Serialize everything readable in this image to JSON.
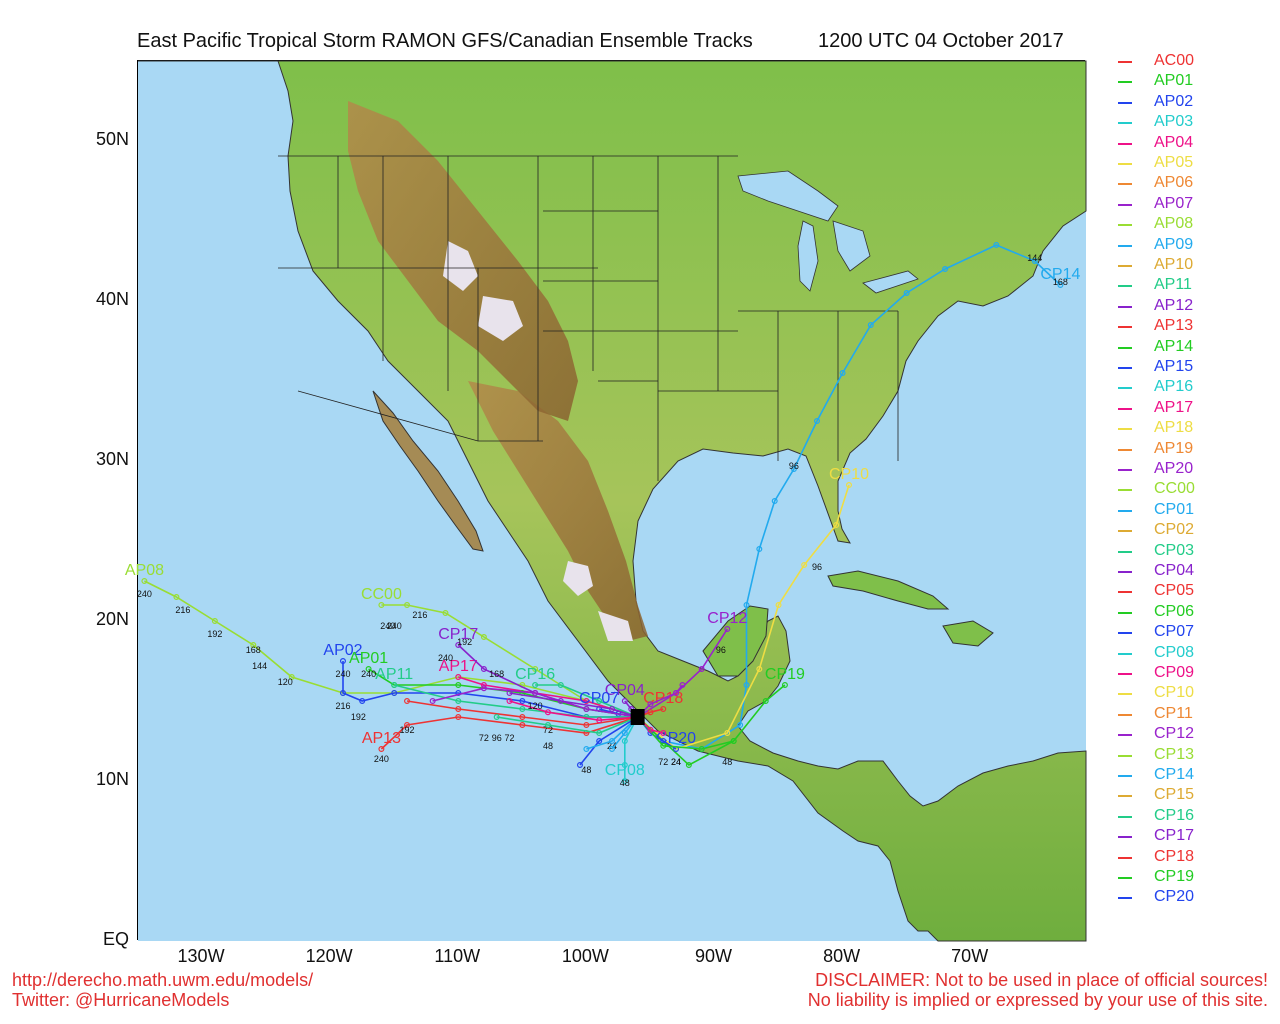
{
  "title": {
    "main": "East Pacific Tropical Storm RAMON GFS/Canadian Ensemble Tracks",
    "time": "1200 UTC 04 October 2017"
  },
  "axes": {
    "lat_labels": [
      "50N",
      "40N",
      "30N",
      "20N",
      "10N",
      "EQ"
    ],
    "lon_labels": [
      "130W",
      "120W",
      "110W",
      "100W",
      "90W",
      "80W",
      "70W"
    ]
  },
  "legend": [
    {
      "name": "AC00",
      "color": "#ee3333"
    },
    {
      "name": "AP01",
      "color": "#22cc22"
    },
    {
      "name": "AP02",
      "color": "#2244ee"
    },
    {
      "name": "AP03",
      "color": "#22cccc"
    },
    {
      "name": "AP04",
      "color": "#ee1188"
    },
    {
      "name": "AP05",
      "color": "#eedd44"
    },
    {
      "name": "AP06",
      "color": "#ee8833"
    },
    {
      "name": "AP07",
      "color": "#9922cc"
    },
    {
      "name": "AP08",
      "color": "#99dd33"
    },
    {
      "name": "AP09",
      "color": "#22aaee"
    },
    {
      "name": "AP10",
      "color": "#ddaa33"
    },
    {
      "name": "AP11",
      "color": "#22cc88"
    },
    {
      "name": "AP12",
      "color": "#8822cc"
    },
    {
      "name": "AP13",
      "color": "#ee3333"
    },
    {
      "name": "AP14",
      "color": "#22cc22"
    },
    {
      "name": "AP15",
      "color": "#2244ee"
    },
    {
      "name": "AP16",
      "color": "#22cccc"
    },
    {
      "name": "AP17",
      "color": "#ee1188"
    },
    {
      "name": "AP18",
      "color": "#eedd44"
    },
    {
      "name": "AP19",
      "color": "#ee8833"
    },
    {
      "name": "AP20",
      "color": "#9922cc"
    },
    {
      "name": "CC00",
      "color": "#99dd33"
    },
    {
      "name": "CP01",
      "color": "#22aaee"
    },
    {
      "name": "CP02",
      "color": "#ddaa33"
    },
    {
      "name": "CP03",
      "color": "#22cc88"
    },
    {
      "name": "CP04",
      "color": "#8822cc"
    },
    {
      "name": "CP05",
      "color": "#ee3333"
    },
    {
      "name": "CP06",
      "color": "#22cc22"
    },
    {
      "name": "CP07",
      "color": "#2244ee"
    },
    {
      "name": "CP08",
      "color": "#22cccc"
    },
    {
      "name": "CP09",
      "color": "#ee1188"
    },
    {
      "name": "CP10",
      "color": "#eedd44"
    },
    {
      "name": "CP11",
      "color": "#ee8833"
    },
    {
      "name": "CP12",
      "color": "#9922cc"
    },
    {
      "name": "CP13",
      "color": "#99dd33"
    },
    {
      "name": "CP14",
      "color": "#22aaee"
    },
    {
      "name": "CP15",
      "color": "#ddaa33"
    },
    {
      "name": "CP16",
      "color": "#22cc88"
    },
    {
      "name": "CP17",
      "color": "#8822cc"
    },
    {
      "name": "CP18",
      "color": "#ee3333"
    },
    {
      "name": "CP19",
      "color": "#22cc22"
    },
    {
      "name": "CP20",
      "color": "#2244ee"
    }
  ],
  "tracks": [
    {
      "name": "CP14",
      "color": "#22aaee",
      "label": "CP14",
      "points": [
        [
          -96,
          14
        ],
        [
          -94,
          12.5
        ],
        [
          -91,
          12
        ],
        [
          -88,
          13.5
        ],
        [
          -87.5,
          16
        ],
        [
          -87.5,
          21
        ],
        [
          -86.5,
          24.5
        ],
        [
          -85.3,
          27.5
        ],
        [
          -83.8,
          29.5
        ],
        [
          -82,
          32.5
        ],
        [
          -80,
          35.5
        ],
        [
          -77.8,
          38.5
        ],
        [
          -75,
          40.5
        ],
        [
          -72,
          42
        ],
        [
          -68,
          43.5
        ],
        [
          -65,
          42.5
        ],
        [
          -63,
          41
        ]
      ],
      "hours": [
        {
          "t": "96",
          "at": [
            -83.8,
            29.5
          ]
        },
        {
          "t": "144",
          "at": [
            -65,
            42.5
          ]
        },
        {
          "t": "168",
          "at": [
            -63,
            41
          ]
        }
      ]
    },
    {
      "name": "CP10",
      "color": "#eedd44",
      "label": "CP10",
      "points": [
        [
          -96,
          14
        ],
        [
          -93,
          12
        ],
        [
          -89,
          13
        ],
        [
          -86.5,
          17
        ],
        [
          -85,
          21
        ],
        [
          -83,
          23.5
        ],
        [
          -80.5,
          26
        ],
        [
          -79.5,
          28.5
        ]
      ],
      "hours": [
        {
          "t": "96",
          "at": [
            -82,
            23.2
          ]
        }
      ]
    },
    {
      "name": "CP12",
      "color": "#9922cc",
      "label": "CP12",
      "points": [
        [
          -96,
          14
        ],
        [
          -93,
          15.5
        ],
        [
          -91,
          17
        ],
        [
          -89,
          19.5
        ]
      ],
      "hours": [
        {
          "t": "96",
          "at": [
            -89.5,
            18
          ]
        }
      ]
    },
    {
      "name": "CP19",
      "color": "#22cc22",
      "label": "CP19",
      "points": [
        [
          -96,
          14
        ],
        [
          -92,
          11
        ],
        [
          -88.5,
          12.5
        ],
        [
          -86,
          15
        ],
        [
          -84.5,
          16
        ]
      ],
      "hours": [
        {
          "t": "48",
          "at": [
            -89,
            11
          ]
        }
      ]
    },
    {
      "name": "AP08",
      "color": "#99dd33",
      "label": "AP08",
      "points": [
        [
          -96,
          14
        ],
        [
          -100,
          15
        ],
        [
          -105,
          16
        ],
        [
          -110,
          16.5
        ],
        [
          -115,
          15.5
        ],
        [
          -119,
          15.5
        ],
        [
          -123,
          16.5
        ],
        [
          -126,
          18.5
        ],
        [
          -129,
          20
        ],
        [
          -132,
          21.5
        ],
        [
          -134.5,
          22.5
        ]
      ],
      "hours": [
        {
          "t": "120",
          "at": [
            -123.5,
            16
          ]
        },
        {
          "t": "144",
          "at": [
            -125.5,
            17
          ]
        },
        {
          "t": "168",
          "at": [
            -126,
            18
          ]
        },
        {
          "t": "192",
          "at": [
            -129,
            19
          ]
        },
        {
          "t": "216",
          "at": [
            -131.5,
            20.5
          ]
        },
        {
          "t": "240",
          "at": [
            -134.5,
            21.5
          ]
        }
      ]
    },
    {
      "name": "CC00",
      "color": "#99dd33",
      "label": "CC00",
      "points": [
        [
          -96,
          14
        ],
        [
          -100,
          15
        ],
        [
          -104,
          17
        ],
        [
          -108,
          19
        ],
        [
          -111,
          20.5
        ],
        [
          -114,
          21
        ],
        [
          -116,
          21
        ]
      ],
      "hours": [
        {
          "t": "216",
          "at": [
            -113,
            20.2
          ]
        },
        {
          "t": "240",
          "at": [
            -115.5,
            19.5
          ]
        }
      ]
    },
    {
      "name": "AP17",
      "color": "#ee1188",
      "label": "AP17",
      "points": [
        [
          -96,
          14
        ],
        [
          -100,
          15
        ],
        [
          -104,
          15.5
        ],
        [
          -108,
          16
        ],
        [
          -110,
          16.5
        ]
      ],
      "hours": []
    },
    {
      "name": "CP17",
      "color": "#8822cc",
      "label": "CP17",
      "points": [
        [
          -96,
          14
        ],
        [
          -100,
          14.5
        ],
        [
          -104,
          15.5
        ],
        [
          -108,
          17
        ],
        [
          -110,
          18.5
        ]
      ],
      "hours": [
        {
          "t": "192",
          "at": [
            -109.5,
            18.5
          ]
        },
        {
          "t": "240",
          "at": [
            -111,
            17.5
          ]
        }
      ]
    },
    {
      "name": "AP02",
      "color": "#2244ee",
      "label": "AP02",
      "points": [
        [
          -96,
          14
        ],
        [
          -100,
          14
        ],
        [
          -105,
          15
        ],
        [
          -110,
          15.5
        ],
        [
          -115,
          15.5
        ],
        [
          -117.5,
          15
        ],
        [
          -119,
          15.5
        ],
        [
          -119,
          17.5
        ]
      ],
      "hours": [
        {
          "t": "216",
          "at": [
            -119,
            14.5
          ]
        },
        {
          "t": "240",
          "at": [
            -119,
            16.5
          ]
        },
        {
          "t": "192",
          "at": [
            -117.8,
            13.8
          ]
        }
      ]
    },
    {
      "name": "AP01",
      "color": "#22cc22",
      "label": "AP01",
      "points": [
        [
          -96,
          14
        ],
        [
          -100,
          14.5
        ],
        [
          -105,
          15.5
        ],
        [
          -110,
          16
        ],
        [
          -115,
          16
        ],
        [
          -117,
          17
        ]
      ],
      "hours": [
        {
          "t": "240",
          "at": [
            -117,
            16.5
          ]
        }
      ]
    },
    {
      "name": "AP13",
      "color": "#ee3333",
      "label": "AP13",
      "points": [
        [
          -96,
          14
        ],
        [
          -100,
          13
        ],
        [
          -105,
          13.5
        ],
        [
          -110,
          14
        ],
        [
          -114,
          13.5
        ],
        [
          -116,
          12
        ]
      ],
      "hours": [
        {
          "t": "192",
          "at": [
            -114,
            13
          ]
        },
        {
          "t": "240",
          "at": [
            -116,
            11.2
          ]
        }
      ]
    },
    {
      "name": "CP16",
      "color": "#22cc88",
      "label": "CP16",
      "points": [
        [
          -96,
          14
        ],
        [
          -99,
          15
        ],
        [
          -102,
          16
        ],
        [
          -104,
          16
        ]
      ],
      "hours": []
    },
    {
      "name": "CP08",
      "color": "#22cccc",
      "label": "CP08",
      "points": [
        [
          -96,
          14
        ],
        [
          -97,
          12.5
        ],
        [
          -97,
          11
        ],
        [
          -97,
          10
        ]
      ],
      "hours": [
        {
          "t": "48",
          "at": [
            -97,
            9.7
          ]
        }
      ]
    },
    {
      "name": "CP20",
      "color": "#2244ee",
      "label": "CP20",
      "points": [
        [
          -96,
          14
        ],
        [
          -95,
          13
        ],
        [
          -94,
          12.5
        ],
        [
          -93,
          12
        ]
      ],
      "hours": [
        {
          "t": "24",
          "at": [
            -93,
            11
          ]
        }
      ]
    },
    {
      "name": "CP04",
      "color": "#8822cc",
      "label": "CP04",
      "points": [
        [
          -96,
          14
        ],
        [
          -96.5,
          14.5
        ],
        [
          -97,
          15
        ]
      ],
      "hours": []
    },
    {
      "name": "CP07",
      "color": "#2244ee",
      "label": "CP07",
      "points": [
        [
          -96,
          14
        ],
        [
          -97.5,
          14.2
        ],
        [
          -99,
          14.5
        ]
      ],
      "hours": []
    },
    {
      "name": "CP18",
      "color": "#ee3333",
      "label": "CP18",
      "points": [
        [
          -96,
          14
        ],
        [
          -95,
          14.3
        ],
        [
          -94,
          14.5
        ]
      ],
      "hours": [
        {
          "t": "72",
          "at": [
            -94,
            11
          ]
        }
      ]
    },
    {
      "name": "AP11",
      "color": "#22cc88",
      "label": "AP11",
      "points": [
        [
          -96,
          14
        ],
        [
          -100,
          14
        ],
        [
          -105,
          14.5
        ],
        [
          -110,
          15
        ],
        [
          -115,
          16
        ]
      ],
      "hours": [
        {
          "t": "240",
          "at": [
            -115,
            19.5
          ]
        }
      ]
    },
    {
      "name": "AC00",
      "color": "#ee3333",
      "label": "",
      "points": [
        [
          -96,
          14
        ],
        [
          -100,
          13.5
        ],
        [
          -105,
          14
        ],
        [
          -110,
          14.5
        ],
        [
          -114,
          15
        ]
      ],
      "hours": [
        {
          "t": "96",
          "at": [
            -107,
            12.5
          ]
        },
        {
          "t": "72",
          "at": [
            -106,
            12.5
          ]
        }
      ]
    },
    {
      "name": "AP07",
      "color": "#9922cc",
      "label": "",
      "points": [
        [
          -96,
          14
        ],
        [
          -100,
          14.5
        ],
        [
          -104,
          15.5
        ],
        [
          -108,
          15.8
        ],
        [
          -112,
          15
        ]
      ],
      "hours": [
        {
          "t": "168",
          "at": [
            -107,
            16.5
          ]
        }
      ]
    },
    {
      "name": "AP15",
      "color": "#2244ee",
      "label": "",
      "points": [
        [
          -96,
          14
        ],
        [
          -99,
          12.5
        ],
        [
          -100.5,
          11
        ]
      ],
      "hours": [
        {
          "t": "24",
          "at": [
            -98,
            12
          ]
        },
        {
          "t": "48",
          "at": [
            -100,
            10.5
          ]
        }
      ]
    },
    {
      "name": "AP04",
      "color": "#ee1188",
      "label": "",
      "points": [
        [
          -96,
          14
        ],
        [
          -99,
          13.8
        ],
        [
          -103,
          14.3
        ],
        [
          -106,
          15
        ]
      ],
      "hours": [
        {
          "t": "120",
          "at": [
            -104,
            14.5
          ]
        }
      ]
    },
    {
      "name": "AP09",
      "color": "#22aaee",
      "label": "",
      "points": [
        [
          -96,
          14
        ],
        [
          -98,
          12.5
        ],
        [
          -100,
          12
        ]
      ],
      "hours": [
        {
          "t": "48",
          "at": [
            -103,
            12
          ]
        }
      ]
    },
    {
      "name": "AP12",
      "color": "#8822cc",
      "label": "",
      "points": [
        [
          -96,
          14
        ],
        [
          -98,
          14.5
        ],
        [
          -102,
          15
        ],
        [
          -106,
          15.5
        ]
      ],
      "hours": [
        {
          "t": "72",
          "at": [
            -103,
            13
          ]
        }
      ]
    },
    {
      "name": "CP01",
      "color": "#22aaee",
      "label": "",
      "points": [
        [
          -96,
          14
        ],
        [
          -97,
          13
        ],
        [
          -98,
          12
        ]
      ],
      "hours": []
    },
    {
      "name": "CP03",
      "color": "#22cc88",
      "label": "",
      "points": [
        [
          -96,
          14
        ],
        [
          -99,
          13
        ],
        [
          -103,
          13.5
        ],
        [
          -107,
          14
        ]
      ],
      "hours": [
        {
          "t": "72",
          "at": [
            -108,
            12.5
          ]
        }
      ]
    },
    {
      "name": "CP06",
      "color": "#22cc22",
      "label": "",
      "points": [
        [
          -96,
          14
        ],
        [
          -94,
          12.2
        ],
        [
          -91,
          12
        ],
        [
          -88.5,
          12.5
        ]
      ],
      "hours": [
        {
          "t": "24",
          "at": [
            -93,
            11
          ]
        }
      ]
    },
    {
      "name": "CP09",
      "color": "#ee1188",
      "label": "",
      "points": [
        [
          -96,
          14
        ],
        [
          -95,
          13.2
        ],
        [
          -94,
          13
        ]
      ],
      "hours": []
    },
    {
      "name": "AP20",
      "color": "#9922cc",
      "label": "",
      "points": [
        [
          -96,
          14
        ],
        [
          -95,
          14.8
        ],
        [
          -93,
          15.5
        ],
        [
          -92.5,
          16
        ]
      ],
      "hours": []
    }
  ],
  "storm_marker_label": "",
  "footer": {
    "url": "http://derecho.math.uwm.edu/models/",
    "twitter": "Twitter: @HurricaneModels",
    "disclaimer1": "DISCLAIMER: Not to be used in place of official sources!",
    "disclaimer2": "No liability is implied or expressed by your use of this site."
  }
}
